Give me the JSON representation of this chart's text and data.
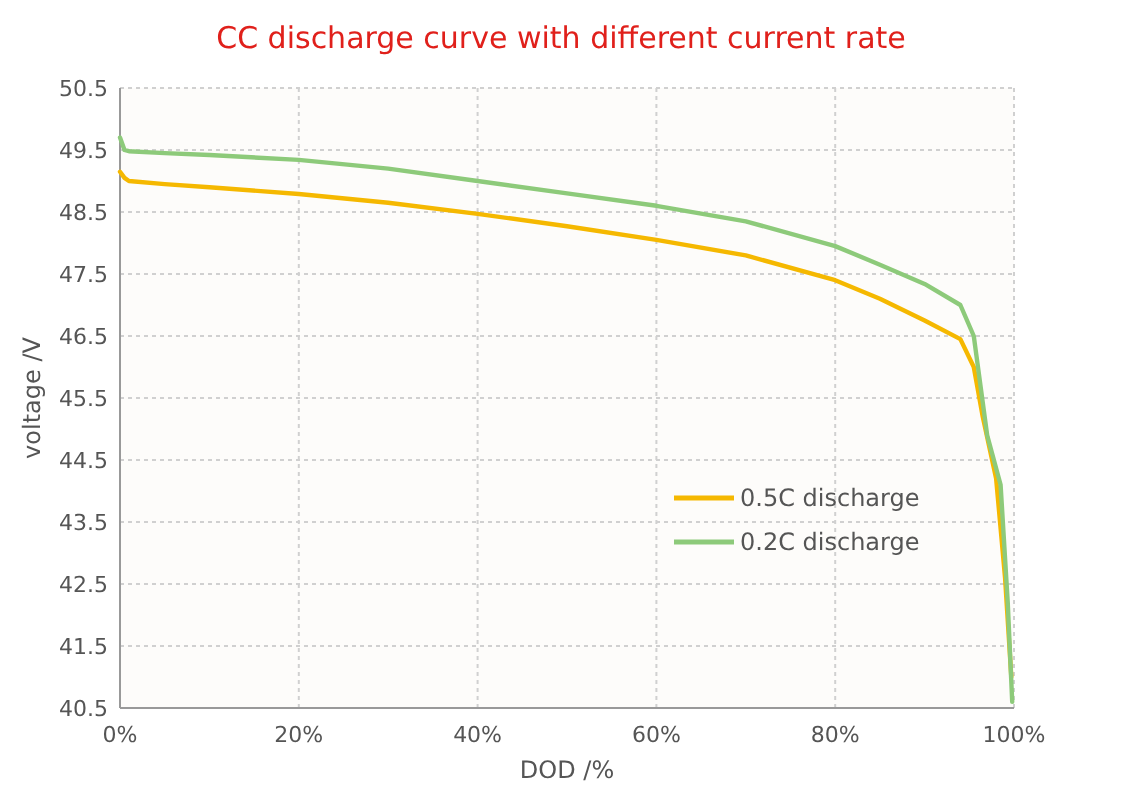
{
  "chart_data": {
    "type": "line",
    "title": "CC discharge curve with different current rate",
    "xlabel": "DOD /%",
    "ylabel": "voltage /V",
    "xlim": [
      0,
      100
    ],
    "xticks": [
      {
        "value": 0,
        "label": "0%"
      },
      {
        "value": 20,
        "label": "20%"
      },
      {
        "value": 40,
        "label": "40%"
      },
      {
        "value": 60,
        "label": "60%"
      },
      {
        "value": 80,
        "label": "80%"
      },
      {
        "value": 100,
        "label": "100%"
      }
    ],
    "ylim": [
      40.5,
      50.5
    ],
    "yticks": [
      40.5,
      41.5,
      42.5,
      43.5,
      44.5,
      45.5,
      46.5,
      47.5,
      48.5,
      49.5,
      50.5
    ],
    "grid": true,
    "legend": "bottom right",
    "marker": "none",
    "line_style": "solid",
    "series": [
      {
        "name": "0.5C discharge",
        "color": "#f5b800",
        "x": [
          0,
          0.5,
          1,
          5,
          10,
          20,
          30,
          40,
          50,
          60,
          70,
          80,
          85,
          90,
          94,
          95.5,
          96.5,
          98,
          99,
          99.7
        ],
        "values": [
          49.15,
          49.05,
          49.0,
          48.95,
          48.9,
          48.79,
          48.65,
          48.47,
          48.27,
          48.05,
          47.8,
          47.4,
          47.1,
          46.75,
          46.45,
          46.0,
          45.2,
          44.2,
          42.6,
          41.0
        ]
      },
      {
        "name": "0.2C discharge",
        "color": "#8dca7a",
        "x": [
          0,
          0.5,
          1,
          5,
          10,
          20,
          30,
          40,
          50,
          60,
          70,
          80,
          85,
          90,
          94,
          95.5,
          97,
          98.5,
          99.3,
          99.8
        ],
        "values": [
          49.7,
          49.5,
          49.48,
          49.45,
          49.42,
          49.34,
          49.2,
          49.0,
          48.8,
          48.6,
          48.35,
          47.95,
          47.65,
          47.34,
          47.0,
          46.5,
          44.9,
          44.1,
          42.2,
          40.6
        ]
      }
    ]
  }
}
